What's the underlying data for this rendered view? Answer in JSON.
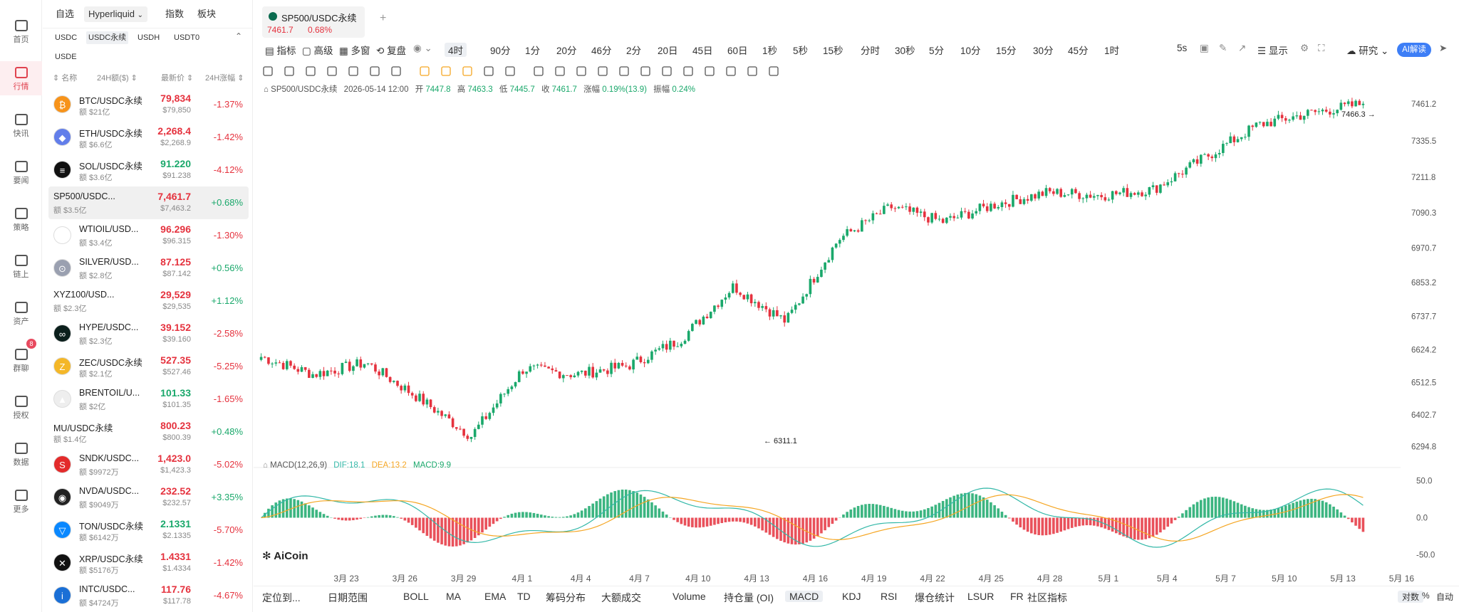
{
  "nav": [
    {
      "label": "首页",
      "icon": "home-icon"
    },
    {
      "label": "行情",
      "icon": "market-icon",
      "active": true
    },
    {
      "label": "快讯",
      "icon": "news-icon",
      "dot": true
    },
    {
      "label": "要闻",
      "icon": "article-icon"
    },
    {
      "label": "策略",
      "icon": "robot-icon"
    },
    {
      "label": "链上",
      "icon": "chain-icon"
    },
    {
      "label": "资产",
      "icon": "wallet-icon"
    },
    {
      "label": "群聊",
      "icon": "chat-icon",
      "badge": "8"
    },
    {
      "label": "授权",
      "icon": "key-icon"
    },
    {
      "label": "数据",
      "icon": "data-icon"
    },
    {
      "label": "更多",
      "icon": "more-icon"
    }
  ],
  "market": {
    "tabs": [
      "自选",
      "Hyperliquid",
      "指数",
      "板块"
    ],
    "subtabs": [
      "USDC",
      "USDC永续",
      "USDH",
      "USDT0",
      "USDE"
    ],
    "headers": {
      "name": "名称",
      "vol": "24H额($)",
      "price": "最新价",
      "change": "24H涨幅"
    },
    "rows": [
      {
        "name": "BTC/USDC永续",
        "vol": "额 $21亿",
        "price": "79,834",
        "price2": "$79,850",
        "change": "-1.37%",
        "dir": "dn",
        "color": "#f7931a",
        "glyph": "₿"
      },
      {
        "name": "ETH/USDC永续",
        "vol": "额 $6.6亿",
        "price": "2,268.4",
        "price2": "$2,268.9",
        "change": "-1.42%",
        "dir": "dn",
        "color": "#627eea",
        "glyph": "◆"
      },
      {
        "name": "SOL/USDC永续",
        "vol": "额 $3.6亿",
        "price": "91.220",
        "price2": "$91.238",
        "change": "-4.12%",
        "dir": "up",
        "color": "#111",
        "glyph": "≡"
      },
      {
        "name": "SP500/USDC...",
        "vol": "额 $3.5亿",
        "price": "7,461.7",
        "price2": "$7,463.2",
        "change": "+0.68%",
        "dir": "dn",
        "sel": true,
        "color": "",
        "glyph": ""
      },
      {
        "name": "WTIOIL/USD...",
        "vol": "额 $3.4亿",
        "price": "96.296",
        "price2": "$96.315",
        "change": "-1.30%",
        "dir": "dn",
        "color": "#fff",
        "glyph": "▲"
      },
      {
        "name": "SILVER/USD...",
        "vol": "额 $2.8亿",
        "price": "87.125",
        "price2": "$87.142",
        "change": "+0.56%",
        "dir": "dn",
        "color": "#9aa0b0",
        "glyph": "⊙"
      },
      {
        "name": "XYZ100/USD...",
        "vol": "额 $2.3亿",
        "price": "29,529",
        "price2": "$29,535",
        "change": "+1.12%",
        "dir": "dn",
        "color": "",
        "glyph": ""
      },
      {
        "name": "HYPE/USDC...",
        "vol": "额 $2.3亿",
        "price": "39.152",
        "price2": "$39.160",
        "change": "-2.58%",
        "dir": "dn",
        "color": "#0b1f1c",
        "glyph": "∞"
      },
      {
        "name": "ZEC/USDC永续",
        "vol": "额 $2.1亿",
        "price": "527.35",
        "price2": "$527.46",
        "change": "-5.25%",
        "dir": "dn",
        "color": "#f4b728",
        "glyph": "Z"
      },
      {
        "name": "BRENTOIL/U...",
        "vol": "额 $2亿",
        "price": "101.33",
        "price2": "$101.35",
        "change": "-1.65%",
        "dir": "up",
        "color": "#eee",
        "glyph": "▲"
      },
      {
        "name": "MU/USDC永续",
        "vol": "额 $1.4亿",
        "price": "800.23",
        "price2": "$800.39",
        "change": "+0.48%",
        "dir": "dn",
        "color": "",
        "glyph": ""
      },
      {
        "name": "SNDK/USDC...",
        "vol": "额 $9972万",
        "price": "1,423.0",
        "price2": "$1,423.3",
        "change": "-5.02%",
        "dir": "dn",
        "color": "#e32b2b",
        "glyph": "S"
      },
      {
        "name": "NVDA/USDC...",
        "vol": "额 $9049万",
        "price": "232.52",
        "price2": "$232.57",
        "change": "+3.35%",
        "dir": "dn",
        "color": "#222",
        "glyph": "◉"
      },
      {
        "name": "TON/USDC永续",
        "vol": "额 $6142万",
        "price": "2.1331",
        "price2": "$2.1335",
        "change": "-5.70%",
        "dir": "up",
        "color": "#0a88ff",
        "glyph": "▽"
      },
      {
        "name": "XRP/USDC永续",
        "vol": "额 $5176万",
        "price": "1.4331",
        "price2": "$1.4334",
        "change": "-1.42%",
        "dir": "dn",
        "color": "#111",
        "glyph": "✕"
      },
      {
        "name": "INTC/USDC...",
        "vol": "额 $4724万",
        "price": "117.76",
        "price2": "$117.78",
        "change": "-4.67%",
        "dir": "dn",
        "color": "#1a6fd6",
        "glyph": "i"
      }
    ]
  },
  "chart": {
    "tab_title": "SP500/USDC永续",
    "tab_price": "7461.7",
    "tab_change": "0.68%",
    "toolbar_left": [
      "指标",
      "高级",
      "多窗",
      "复盘"
    ],
    "intervals": [
      "4时",
      "90分",
      "1分",
      "20分",
      "46分",
      "2分",
      "20日",
      "45日",
      "60日",
      "1秒",
      "5秒",
      "15秒",
      "分时",
      "30秒",
      "5分",
      "10分",
      "15分",
      "30分",
      "45分",
      "1时"
    ],
    "toolbar_right": {
      "refresh": "5s",
      "display": "显示",
      "research": "研究",
      "ai": "AI解读"
    },
    "ohlc": {
      "symbol": "SP500/USDC永续",
      "time": "2026-05-14 12:00",
      "open_label": "开",
      "open": "7447.8",
      "high_label": "高",
      "high": "7463.3",
      "low_label": "低",
      "low": "7445.7",
      "close_label": "收",
      "close": "7461.7",
      "chg_label": "涨幅",
      "chg": "0.19%(13.9)",
      "amp_label": "振幅",
      "amp": "0.24%"
    },
    "price_axis": [
      "7461.2",
      "7335.5",
      "7211.8",
      "7090.3",
      "6970.7",
      "6853.2",
      "6737.7",
      "6624.2",
      "6512.5",
      "6402.7",
      "6294.8"
    ],
    "macd_axis": [
      "50.0",
      "0.0",
      "-50.0"
    ],
    "dates": [
      "3月 23",
      "3月 26",
      "3月 29",
      "4月 1",
      "4月 4",
      "4月 7",
      "4月 10",
      "4月 13",
      "4月 16",
      "4月 19",
      "4月 22",
      "4月 25",
      "4月 28",
      "5月 1",
      "5月 4",
      "5月 7",
      "5月 10",
      "5月 13",
      "5月 16"
    ],
    "max_label": "7466.3",
    "min_label": "6311.1",
    "macd": {
      "name": "MACD(12,26,9)",
      "dif": "DIF:18.1",
      "dea": "DEA:13.2",
      "macd": "MACD:9.9"
    },
    "logo": "AiCoin",
    "bottom_tabs": [
      "定位到...",
      "日期范围",
      "BOLL",
      "MA",
      "EMA",
      "TD",
      "筹码分布",
      "大额成交",
      "Volume",
      "持仓量 (OI)",
      "MACD",
      "KDJ",
      "RSI",
      "爆仓统计",
      "LSUR",
      "FR",
      "社区指标"
    ],
    "bottom_right": [
      "对数",
      "%",
      "自动"
    ],
    "colors": {
      "up": "#1aa86b",
      "down": "#e5323e",
      "dif": "#33b8a8",
      "dea": "#f5a623"
    }
  },
  "chart_data": {
    "type": "candlestick",
    "title": "SP500/USDC永续",
    "interval": "4时",
    "ylim": [
      6240,
      7500
    ],
    "macd_ylim": [
      -60,
      60
    ],
    "x": [
      "3月 23",
      "3月 26",
      "3月 29",
      "4月 1",
      "4月 4",
      "4月 7",
      "4月 10",
      "4月 13",
      "4月 16",
      "4月 19",
      "4月 22",
      "4月 25",
      "4月 28",
      "5月 1",
      "5月 4",
      "5月 7",
      "5月 10",
      "5月 13"
    ],
    "close_approx": [
      6600,
      6540,
      6580,
      6460,
      6330,
      6560,
      6540,
      6570,
      6660,
      6840,
      6720,
      7000,
      7110,
      7060,
      7120,
      7160,
      7150,
      7170,
      7280,
      7390,
      7430,
      7461.7
    ],
    "max_price": 7466.3,
    "min_price": 6311.1
  }
}
